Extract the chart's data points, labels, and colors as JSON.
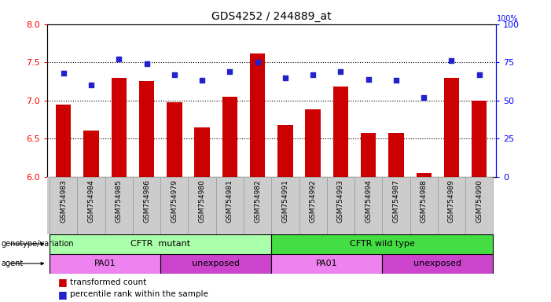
{
  "title": "GDS4252 / 244889_at",
  "samples": [
    "GSM754983",
    "GSM754984",
    "GSM754985",
    "GSM754986",
    "GSM754979",
    "GSM754980",
    "GSM754981",
    "GSM754982",
    "GSM754991",
    "GSM754992",
    "GSM754993",
    "GSM754994",
    "GSM754987",
    "GSM754988",
    "GSM754989",
    "GSM754990"
  ],
  "bar_values": [
    6.95,
    6.6,
    7.3,
    7.25,
    6.98,
    6.65,
    7.05,
    7.62,
    6.68,
    6.88,
    7.18,
    6.57,
    6.57,
    6.05,
    7.3,
    7.0
  ],
  "dot_values": [
    68,
    60,
    77,
    74,
    67,
    63,
    69,
    75,
    65,
    67,
    69,
    64,
    63,
    52,
    76,
    67
  ],
  "ylim_left": [
    6.0,
    8.0
  ],
  "ylim_right": [
    0,
    100
  ],
  "yticks_left": [
    6.0,
    6.5,
    7.0,
    7.5,
    8.0
  ],
  "yticks_right": [
    0,
    25,
    50,
    75,
    100
  ],
  "bar_color": "#cc0000",
  "dot_color": "#2222cc",
  "bar_width": 0.55,
  "genotype_groups": [
    {
      "label": "CFTR  mutant",
      "start": 0,
      "end": 8,
      "color": "#aaffaa"
    },
    {
      "label": "CFTR wild type",
      "start": 8,
      "end": 16,
      "color": "#44dd44"
    }
  ],
  "agent_groups": [
    {
      "label": "PA01",
      "start": 0,
      "end": 4,
      "color": "#ee82ee"
    },
    {
      "label": "unexposed",
      "start": 4,
      "end": 8,
      "color": "#cc44cc"
    },
    {
      "label": "PA01",
      "start": 8,
      "end": 12,
      "color": "#ee82ee"
    },
    {
      "label": "unexposed",
      "start": 12,
      "end": 16,
      "color": "#cc44cc"
    }
  ],
  "tick_area_color": "#cccccc",
  "bg_color": "#ffffff"
}
